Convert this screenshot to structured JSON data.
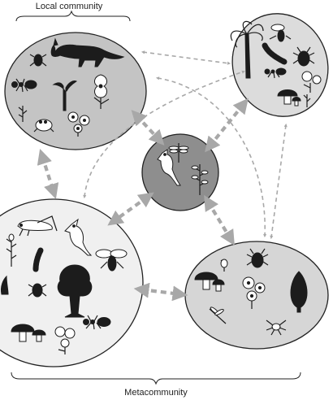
{
  "labels": {
    "local_community": "Local community",
    "metacommunity": "Metacommunity"
  },
  "communities": [
    {
      "organisms": [
        "fox-icon",
        "beetle-icon",
        "ant-icon",
        "frigatebird-icon",
        "flowering-plant-icon",
        "grass-icon",
        "frog-icon",
        "flower-icon"
      ]
    },
    {
      "organisms": [
        "palm-tree-icon",
        "wasp-icon",
        "caterpillar-icon",
        "stag-beetle-icon",
        "ant-icon",
        "flower-icon",
        "mushroom-icon",
        "grass-icon"
      ]
    },
    {
      "organisms": [
        "dragonfly-icon",
        "cardinal-bird-icon",
        "flowering-plant-icon"
      ]
    },
    {
      "organisms": [
        "grasshopper-icon",
        "cardinal-bird-icon",
        "plant-icon",
        "caterpillar-icon",
        "wasp-icon",
        "tree-icon",
        "beetle-icon",
        "mushroom-icon",
        "ant-icon",
        "flower-icon",
        "grass-icon"
      ]
    },
    {
      "organisms": [
        "stag-beetle-icon",
        "grass-icon",
        "mushroom-icon",
        "flower-icon",
        "tree-icon",
        "dragonfly-icon",
        "spider-icon"
      ]
    }
  ],
  "colors": {
    "community_1": "#c4c4c4",
    "community_2": "#dcdcdc",
    "community_3": "#8e8e8e",
    "community_4": "#f0f0f0",
    "community_5": "#d6d6d6",
    "arrow": "#a8a8a8"
  }
}
